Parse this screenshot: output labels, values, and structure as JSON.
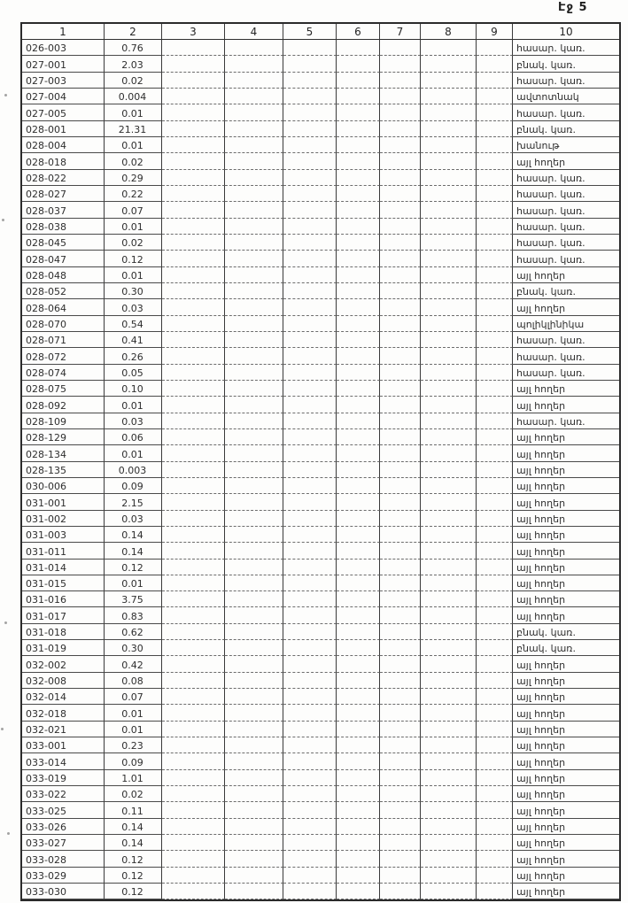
{
  "page": {
    "page_label": "Էջ 5"
  },
  "table": {
    "columns": [
      "1",
      "2",
      "3",
      "4",
      "5",
      "6",
      "7",
      "8",
      "9",
      "10"
    ],
    "rows": [
      {
        "code": "026-003",
        "value": "0.76",
        "category": "հասար. կառ."
      },
      {
        "code": "027-001",
        "value": "2.03",
        "category": "բնակ. կառ."
      },
      {
        "code": "027-003",
        "value": "0.02",
        "category": "հասար. կառ."
      },
      {
        "code": "027-004",
        "value": "0.004",
        "category": "ավտոտնակ"
      },
      {
        "code": "027-005",
        "value": "0.01",
        "category": "հասար. կառ."
      },
      {
        "code": "028-001",
        "value": "21.31",
        "category": "բնակ. կառ."
      },
      {
        "code": "028-004",
        "value": "0.01",
        "category": "խանութ"
      },
      {
        "code": "028-018",
        "value": "0.02",
        "category": "այլ հողեր"
      },
      {
        "code": "028-022",
        "value": "0.29",
        "category": "հասար. կառ."
      },
      {
        "code": "028-027",
        "value": "0.22",
        "category": "հասար. կառ."
      },
      {
        "code": "028-037",
        "value": "0.07",
        "category": "հասար. կառ."
      },
      {
        "code": "028-038",
        "value": "0.01",
        "category": "հասար. կառ."
      },
      {
        "code": "028-045",
        "value": "0.02",
        "category": "հասար. կառ."
      },
      {
        "code": "028-047",
        "value": "0.12",
        "category": "հասար. կառ."
      },
      {
        "code": "028-048",
        "value": "0.01",
        "category": "այլ հողեր"
      },
      {
        "code": "028-052",
        "value": "0.30",
        "category": "բնակ. կառ."
      },
      {
        "code": "028-064",
        "value": "0.03",
        "category": "այլ հողեր"
      },
      {
        "code": "028-070",
        "value": "0.54",
        "category": "պոլիկլինիկա"
      },
      {
        "code": "028-071",
        "value": "0.41",
        "category": "հասար. կառ."
      },
      {
        "code": "028-072",
        "value": "0.26",
        "category": "հասար. կառ."
      },
      {
        "code": "028-074",
        "value": "0.05",
        "category": "հասար. կառ."
      },
      {
        "code": "028-075",
        "value": "0.10",
        "category": "այլ հողեր"
      },
      {
        "code": "028-092",
        "value": "0.01",
        "category": "այլ հողեր"
      },
      {
        "code": "028-109",
        "value": "0.03",
        "category": "հասար. կառ."
      },
      {
        "code": "028-129",
        "value": "0.06",
        "category": "այլ հողեր"
      },
      {
        "code": "028-134",
        "value": "0.01",
        "category": "այլ հողեր"
      },
      {
        "code": "028-135",
        "value": "0.003",
        "category": "այլ հողեր"
      },
      {
        "code": "030-006",
        "value": "0.09",
        "category": "այլ հողեր"
      },
      {
        "code": "031-001",
        "value": "2.15",
        "category": "այլ հողեր"
      },
      {
        "code": "031-002",
        "value": "0.03",
        "category": "այլ հողեր"
      },
      {
        "code": "031-003",
        "value": "0.14",
        "category": "այլ հողեր"
      },
      {
        "code": "031-011",
        "value": "0.14",
        "category": "այլ հողեր"
      },
      {
        "code": "031-014",
        "value": "0.12",
        "category": "այլ հողեր"
      },
      {
        "code": "031-015",
        "value": "0.01",
        "category": "այլ հողեր"
      },
      {
        "code": "031-016",
        "value": "3.75",
        "category": "այլ հողեր"
      },
      {
        "code": "031-017",
        "value": "0.83",
        "category": "այլ հողեր"
      },
      {
        "code": "031-018",
        "value": "0.62",
        "category": "բնակ. կառ."
      },
      {
        "code": "031-019",
        "value": "0.30",
        "category": "բնակ. կառ."
      },
      {
        "code": "032-002",
        "value": "0.42",
        "category": "այլ հողեր"
      },
      {
        "code": "032-008",
        "value": "0.08",
        "category": "այլ հողեր"
      },
      {
        "code": "032-014",
        "value": "0.07",
        "category": "այլ հողեր"
      },
      {
        "code": "032-018",
        "value": "0.01",
        "category": "այլ հողեր"
      },
      {
        "code": "032-021",
        "value": "0.01",
        "category": "այլ հողեր"
      },
      {
        "code": "033-001",
        "value": "0.23",
        "category": "այլ հողեր"
      },
      {
        "code": "033-014",
        "value": "0.09",
        "category": "այլ հողեր"
      },
      {
        "code": "033-019",
        "value": "1.01",
        "category": "այլ հողեր"
      },
      {
        "code": "033-022",
        "value": "0.02",
        "category": "այլ հողեր"
      },
      {
        "code": "033-025",
        "value": "0.11",
        "category": "այլ հողեր"
      },
      {
        "code": "033-026",
        "value": "0.14",
        "category": "այլ հողեր"
      },
      {
        "code": "033-027",
        "value": "0.14",
        "category": "այլ հողեր"
      },
      {
        "code": "033-028",
        "value": "0.12",
        "category": "այլ հողեր"
      },
      {
        "code": "033-029",
        "value": "0.12",
        "category": "այլ հողեր"
      },
      {
        "code": "033-030",
        "value": "0.12",
        "category": "այլ հողեր"
      }
    ]
  }
}
